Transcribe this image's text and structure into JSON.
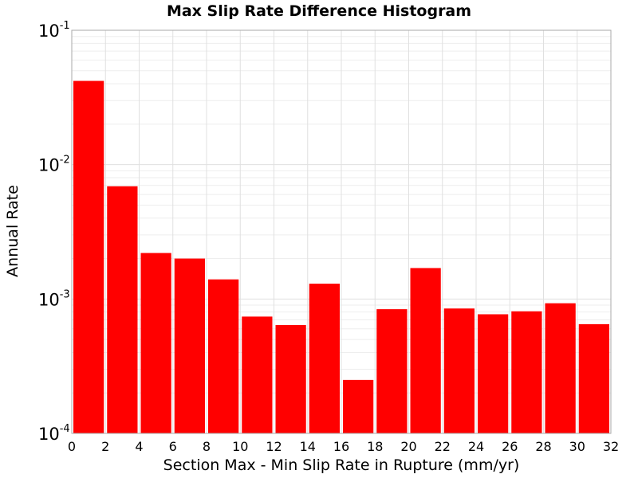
{
  "chart_data": {
    "type": "bar",
    "title": "Max Slip Rate Difference Histogram",
    "xlabel": "Section Max - Min Slip Rate in Rupture (mm/yr)",
    "ylabel": "Annual Rate",
    "xlim": [
      0,
      32
    ],
    "ylim": [
      0.0001,
      0.1
    ],
    "yscale": "log",
    "grid": true,
    "bar_color": "#ff0000",
    "bin_width": 2,
    "x_ticks": [
      "0",
      "2",
      "4",
      "6",
      "8",
      "10",
      "12",
      "14",
      "16",
      "18",
      "20",
      "22",
      "24",
      "26",
      "28",
      "30",
      "32"
    ],
    "y_ticks": [
      {
        "base": "10",
        "exp": "-4"
      },
      {
        "base": "10",
        "exp": "-3"
      },
      {
        "base": "10",
        "exp": "-2"
      },
      {
        "base": "10",
        "exp": "-1"
      }
    ],
    "bins": [
      {
        "x": 1,
        "value": 0.042
      },
      {
        "x": 3,
        "value": 0.0069
      },
      {
        "x": 5,
        "value": 0.0022
      },
      {
        "x": 7,
        "value": 0.002
      },
      {
        "x": 9,
        "value": 0.0014
      },
      {
        "x": 11,
        "value": 0.00074
      },
      {
        "x": 13,
        "value": 0.00064
      },
      {
        "x": 15,
        "value": 0.0013
      },
      {
        "x": 17,
        "value": 0.00025
      },
      {
        "x": 19,
        "value": 0.00084
      },
      {
        "x": 21,
        "value": 0.0017
      },
      {
        "x": 23,
        "value": 0.00085
      },
      {
        "x": 25,
        "value": 0.00077
      },
      {
        "x": 27,
        "value": 0.00081
      },
      {
        "x": 29,
        "value": 0.00093
      },
      {
        "x": 31,
        "value": 0.00065
      }
    ]
  }
}
